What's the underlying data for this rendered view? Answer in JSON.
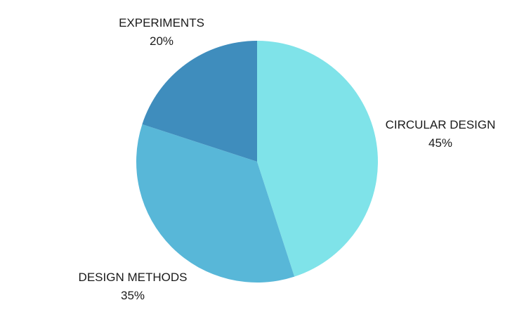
{
  "chart_data": {
    "type": "pie",
    "title": "",
    "slices": [
      {
        "name": "CIRCULAR DESIGN",
        "value": 45,
        "value_label": "45%",
        "color": "#7fe3e9"
      },
      {
        "name": "DESIGN METHODS",
        "value": 35,
        "value_label": "35%",
        "color": "#58b7d8"
      },
      {
        "name": "EXPERIMENTS",
        "value": 20,
        "value_label": "20%",
        "color": "#3f8dbd"
      }
    ],
    "start": "top",
    "direction": "clockwise",
    "legend": "none",
    "labels": "outside"
  }
}
